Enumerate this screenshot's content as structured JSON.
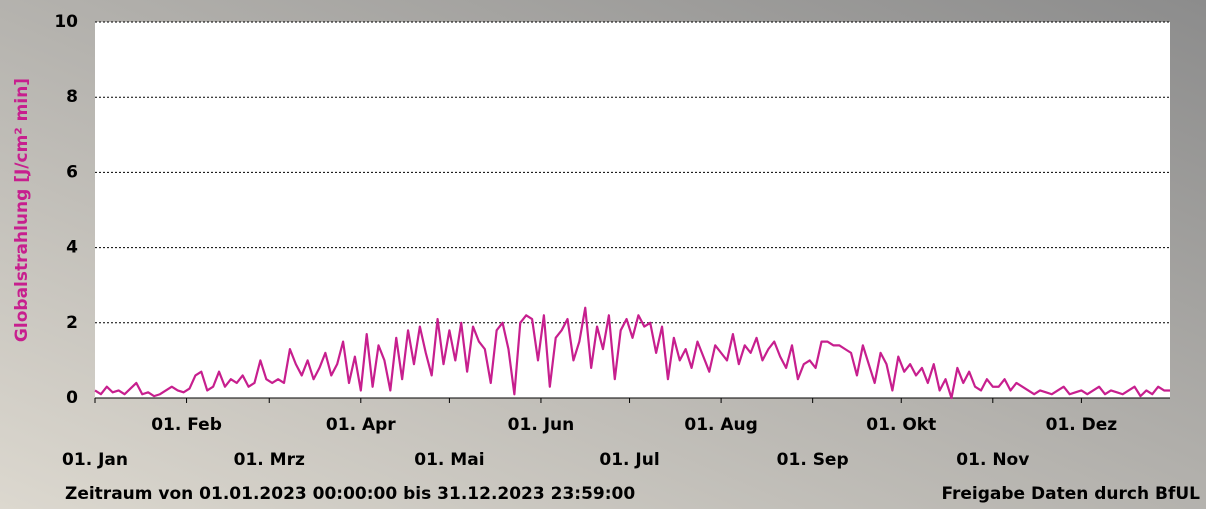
{
  "chart_data": {
    "type": "line",
    "y_label": "Globalstrahlung [J/cm² min]",
    "footer_left": "Zeitraum von 01.01.2023 00:00:00 bis 31.12.2023 23:59:00",
    "footer_right": "Freigabe Daten durch BfUL",
    "xlim": [
      1,
      365
    ],
    "xticks": [
      {
        "value": 1,
        "label": "01. Jan"
      },
      {
        "value": 32,
        "label": "01. Feb"
      },
      {
        "value": 60,
        "label": "01. Mrz"
      },
      {
        "value": 91,
        "label": "01. Apr"
      },
      {
        "value": 121,
        "label": "01. Mai"
      },
      {
        "value": 152,
        "label": "01. Jun"
      },
      {
        "value": 182,
        "label": "01. Jul"
      },
      {
        "value": 213,
        "label": "01. Aug"
      },
      {
        "value": 244,
        "label": "01. Sep"
      },
      {
        "value": 274,
        "label": "01. Okt"
      },
      {
        "value": 305,
        "label": "01. Nov"
      },
      {
        "value": 335,
        "label": "01. Dez"
      }
    ],
    "ylim": [
      0,
      10
    ],
    "yticks": [
      0,
      2,
      4,
      6,
      8,
      10
    ],
    "grid": true,
    "color": "#c71f8e",
    "x": [
      1,
      3,
      5,
      7,
      9,
      11,
      13,
      15,
      17,
      19,
      21,
      23,
      25,
      27,
      29,
      31,
      33,
      35,
      37,
      39,
      41,
      43,
      45,
      47,
      49,
      51,
      53,
      55,
      57,
      59,
      61,
      63,
      65,
      67,
      69,
      71,
      73,
      75,
      77,
      79,
      81,
      83,
      85,
      87,
      89,
      91,
      93,
      95,
      97,
      99,
      101,
      103,
      105,
      107,
      109,
      111,
      113,
      115,
      117,
      119,
      121,
      123,
      125,
      127,
      129,
      131,
      133,
      135,
      137,
      139,
      141,
      143,
      145,
      147,
      149,
      151,
      153,
      155,
      157,
      159,
      161,
      163,
      165,
      167,
      169,
      171,
      173,
      175,
      177,
      179,
      181,
      183,
      185,
      187,
      189,
      191,
      193,
      195,
      197,
      199,
      201,
      203,
      205,
      207,
      209,
      211,
      213,
      215,
      217,
      219,
      221,
      223,
      225,
      227,
      229,
      231,
      233,
      235,
      237,
      239,
      241,
      243,
      245,
      247,
      249,
      251,
      253,
      255,
      257,
      259,
      261,
      263,
      265,
      267,
      269,
      271,
      273,
      275,
      277,
      279,
      281,
      283,
      285,
      287,
      289,
      291,
      293,
      295,
      297,
      299,
      301,
      303,
      305,
      307,
      309,
      311,
      313,
      315,
      317,
      319,
      321,
      323,
      325,
      327,
      329,
      331,
      333,
      335,
      337,
      339,
      341,
      343,
      345,
      347,
      349,
      351,
      353,
      355,
      357,
      359,
      361,
      363,
      365
    ],
    "values": [
      0.2,
      0.1,
      0.3,
      0.15,
      0.2,
      0.1,
      0.25,
      0.4,
      0.1,
      0.15,
      0.05,
      0.1,
      0.2,
      0.3,
      0.2,
      0.15,
      0.25,
      0.6,
      0.7,
      0.2,
      0.3,
      0.7,
      0.3,
      0.5,
      0.4,
      0.6,
      0.3,
      0.4,
      1.0,
      0.5,
      0.4,
      0.5,
      0.4,
      1.3,
      0.9,
      0.6,
      1.0,
      0.5,
      0.8,
      1.2,
      0.6,
      0.9,
      1.5,
      0.4,
      1.1,
      0.2,
      1.7,
      0.3,
      1.4,
      1.0,
      0.2,
      1.6,
      0.5,
      1.8,
      0.9,
      1.9,
      1.2,
      0.6,
      2.1,
      0.9,
      1.8,
      1.0,
      2.0,
      0.7,
      1.9,
      1.5,
      1.3,
      0.4,
      1.8,
      2.0,
      1.3,
      0.1,
      2.0,
      2.2,
      2.1,
      1.0,
      2.2,
      0.3,
      1.6,
      1.8,
      2.1,
      1.0,
      1.5,
      2.4,
      0.8,
      1.9,
      1.3,
      2.2,
      0.5,
      1.8,
      2.1,
      1.6,
      2.2,
      1.9,
      2.0,
      1.2,
      1.9,
      0.5,
      1.6,
      1.0,
      1.3,
      0.8,
      1.5,
      1.1,
      0.7,
      1.4,
      1.2,
      1.0,
      1.7,
      0.9,
      1.4,
      1.2,
      1.6,
      1.0,
      1.3,
      1.5,
      1.1,
      0.8,
      1.4,
      0.5,
      0.9,
      1.0,
      0.8,
      1.5,
      1.5,
      1.4,
      1.4,
      1.3,
      1.2,
      0.6,
      1.4,
      0.9,
      0.4,
      1.2,
      0.9,
      0.2,
      1.1,
      0.7,
      0.9,
      0.6,
      0.8,
      0.4,
      0.9,
      0.2,
      0.5,
      0.0,
      0.8,
      0.4,
      0.7,
      0.3,
      0.2,
      0.5,
      0.3,
      0.3,
      0.5,
      0.2,
      0.4,
      0.3,
      0.2,
      0.1,
      0.2,
      0.15,
      0.1,
      0.2,
      0.3,
      0.1,
      0.15,
      0.2,
      0.1,
      0.2,
      0.3,
      0.1,
      0.2,
      0.15,
      0.1,
      0.2,
      0.3,
      0.05,
      0.2,
      0.1,
      0.3,
      0.2,
      0.2
    ]
  }
}
